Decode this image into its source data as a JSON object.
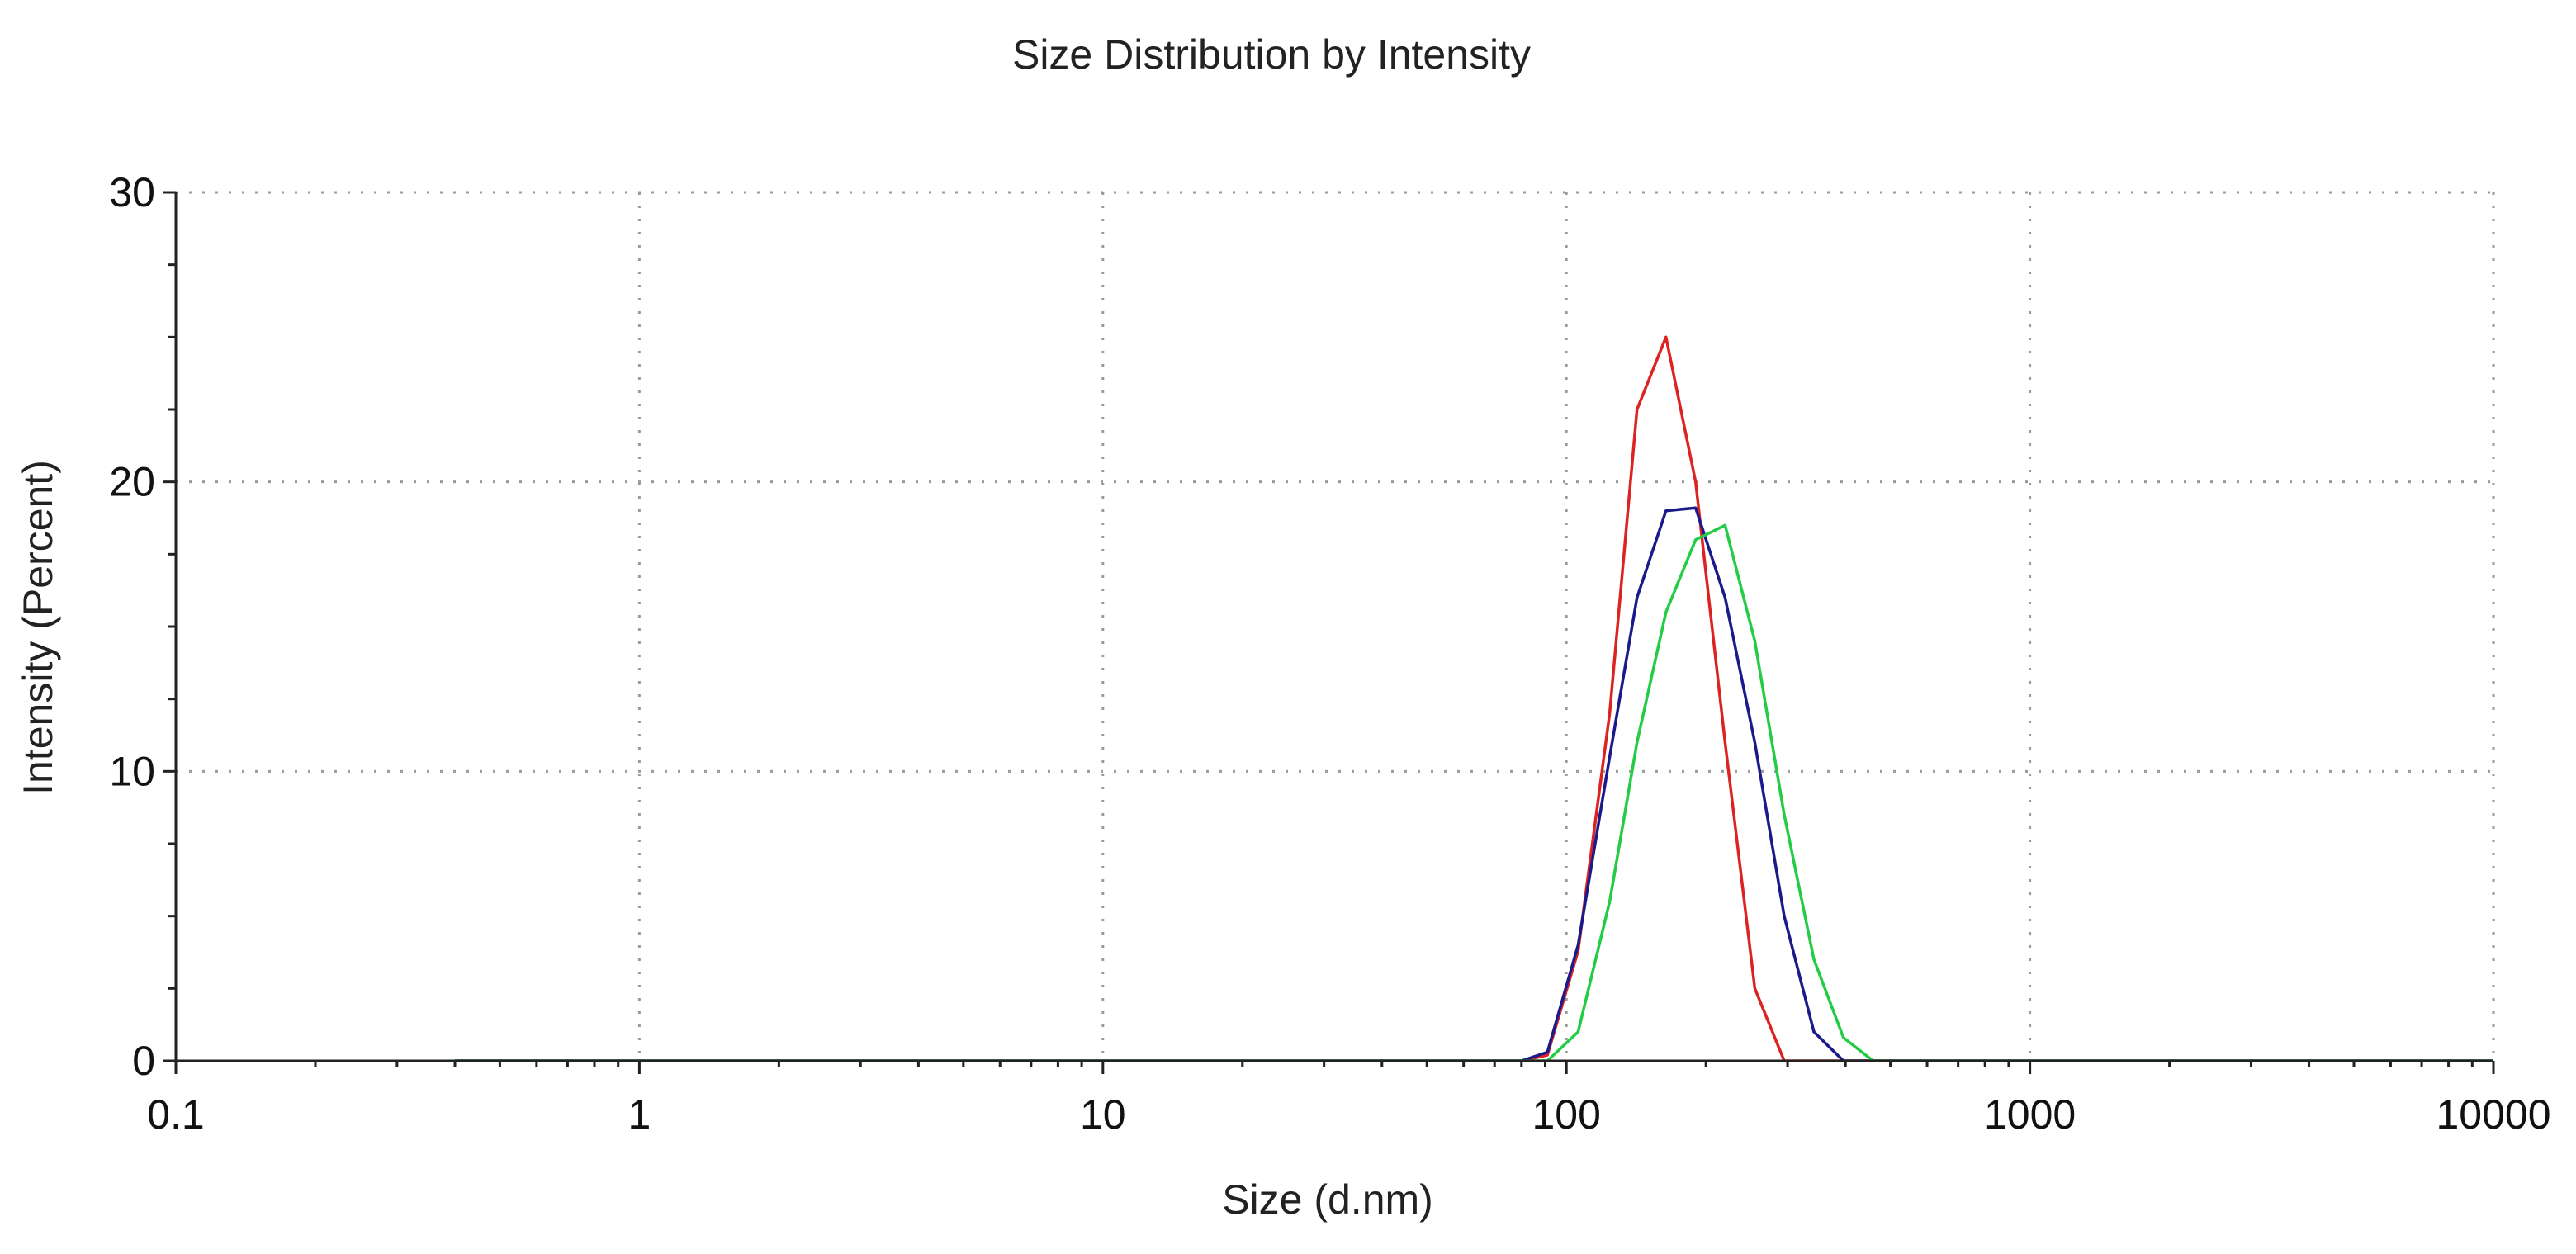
{
  "chart_data": {
    "type": "line",
    "title": "Size Distribution by Intensity",
    "xlabel": "Size (d.nm)",
    "ylabel": "Intensity (Percent)",
    "x_scale": "log",
    "xlim": [
      0.1,
      10000
    ],
    "ylim": [
      0,
      30
    ],
    "x_ticks": [
      0.1,
      1,
      10,
      100,
      1000,
      10000
    ],
    "x_tick_labels": [
      "0.1",
      "1",
      "10",
      "100",
      "1000",
      "10000"
    ],
    "y_ticks": [
      0,
      10,
      20,
      30
    ],
    "y_tick_labels": [
      "0",
      "10",
      "20",
      "30"
    ],
    "grid": true,
    "legend": "none",
    "series": [
      {
        "color": "#dd2222",
        "points": [
          [
            0.4,
            0
          ],
          [
            80,
            0
          ],
          [
            91,
            0.2
          ],
          [
            106,
            3.8
          ],
          [
            124,
            12
          ],
          [
            142,
            22.5
          ],
          [
            164,
            25
          ],
          [
            190,
            20
          ],
          [
            220,
            11
          ],
          [
            255,
            2.5
          ],
          [
            295,
            0
          ],
          [
            10000,
            0
          ]
        ]
      },
      {
        "color": "#1a1a8a",
        "points": [
          [
            0.4,
            0
          ],
          [
            80,
            0
          ],
          [
            91,
            0.3
          ],
          [
            106,
            4
          ],
          [
            124,
            10.5
          ],
          [
            142,
            16
          ],
          [
            164,
            19
          ],
          [
            190,
            19.1
          ],
          [
            220,
            16
          ],
          [
            255,
            11
          ],
          [
            295,
            5
          ],
          [
            342,
            1
          ],
          [
            396,
            0
          ],
          [
            10000,
            0
          ]
        ]
      },
      {
        "color": "#22cc44",
        "points": [
          [
            0.4,
            0
          ],
          [
            91,
            0
          ],
          [
            106,
            1
          ],
          [
            124,
            5.5
          ],
          [
            142,
            11
          ],
          [
            164,
            15.5
          ],
          [
            190,
            18
          ],
          [
            220,
            18.5
          ],
          [
            255,
            14.5
          ],
          [
            295,
            8.5
          ],
          [
            342,
            3.5
          ],
          [
            396,
            0.8
          ],
          [
            459,
            0
          ],
          [
            10000,
            0
          ]
        ]
      }
    ]
  }
}
